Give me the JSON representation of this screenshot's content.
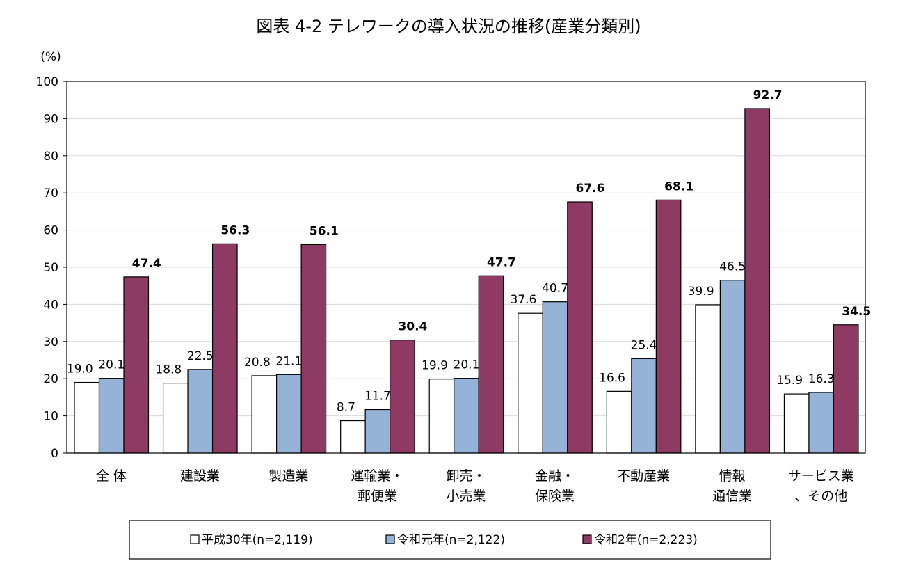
{
  "chart_data": {
    "type": "bar",
    "title": "図表 4-2 テレワークの導入状況の推移(産業分類別)",
    "ylabel": "(%)",
    "ylim": [
      0,
      100
    ],
    "yticks": [
      0,
      10,
      20,
      30,
      40,
      50,
      60,
      70,
      80,
      90,
      100
    ],
    "grid": true,
    "legend_position": "bottom",
    "categories": [
      [
        "全 体"
      ],
      [
        "建設業"
      ],
      [
        "製造業"
      ],
      [
        "運輸業・",
        "郵便業"
      ],
      [
        "卸売・",
        "小売業"
      ],
      [
        "金融・",
        "保険業"
      ],
      [
        "不動産業"
      ],
      [
        "情報",
        "通信業"
      ],
      [
        "サービス業",
        "、その他"
      ]
    ],
    "series": [
      {
        "name": "平成30年(n=2,119)",
        "color": "#ffffff",
        "values": [
          19.0,
          18.8,
          20.8,
          8.7,
          19.9,
          37.6,
          16.6,
          39.9,
          15.9
        ]
      },
      {
        "name": "令和元年(n=2,122)",
        "color": "#95b3d7",
        "values": [
          20.1,
          22.5,
          21.1,
          11.7,
          20.1,
          40.7,
          25.4,
          46.5,
          16.3
        ]
      },
      {
        "name": "令和2年(n=2,223)",
        "color": "#8e3a62",
        "values": [
          47.4,
          56.3,
          56.1,
          30.4,
          47.7,
          67.6,
          68.1,
          92.7,
          34.5
        ]
      }
    ]
  }
}
